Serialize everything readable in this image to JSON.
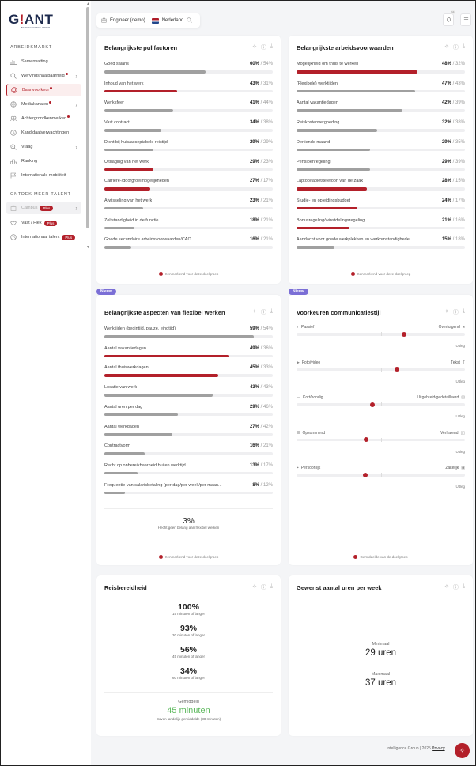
{
  "sidebar": {
    "logo": {
      "main_a": "G",
      "main_bang": "!",
      "main_b": "ANT",
      "sub": "BY INTELLIGENCE GROUP"
    },
    "section_arbeidsmarkt": "ARBEIDSMARKT",
    "items": [
      {
        "label": "Samenvatting",
        "icon": "bar-chart-icon"
      },
      {
        "label": "Wervingshaalbaarheid",
        "icon": "search-icon",
        "dot": true,
        "chevron": true
      },
      {
        "label": "Baanvoorkeur",
        "icon": "fingerprint-icon",
        "dot": true,
        "active": true
      },
      {
        "label": "Mediakanalen",
        "icon": "globe-icon",
        "dot": true,
        "chevron": true
      },
      {
        "label": "Achtergrondkenmerken",
        "icon": "users-icon",
        "dot": true
      },
      {
        "label": "Kandidaatverwachtingen",
        "icon": "clock-icon"
      },
      {
        "label": "Vraag",
        "icon": "zoom-icon",
        "chevron": true
      },
      {
        "label": "Ranking",
        "icon": "podium-icon"
      },
      {
        "label": "Internationale mobiliteit",
        "icon": "flag-icon"
      }
    ],
    "section_ontdek": "ONTDEK MEER TALENT",
    "talent_items": [
      {
        "label": "Campus",
        "badge": "Plus",
        "chevron": true,
        "disabled": true
      },
      {
        "label": "Vast / Flex",
        "badge": "Plus"
      },
      {
        "label": "Internationaal talent",
        "badge": "Plus"
      }
    ]
  },
  "topbar": {
    "profession": "Engineer (demo)",
    "country": "Nederland",
    "notification_count": "11"
  },
  "cards": {
    "pullfactoren": {
      "title": "Belangrijkste pullfactoren",
      "legend": "Kenmerkend voor deze doelgroep",
      "rows": [
        {
          "label": "Goed salaris",
          "value": "60%",
          "benchmark": "/ 54%",
          "pct": 60,
          "highlight": false
        },
        {
          "label": "Inhoud van het werk",
          "value": "43%",
          "benchmark": "/ 31%",
          "pct": 43,
          "highlight": true
        },
        {
          "label": "Werksfeer",
          "value": "41%",
          "benchmark": "/ 44%",
          "pct": 41,
          "highlight": false
        },
        {
          "label": "Vast contract",
          "value": "34%",
          "benchmark": "/ 38%",
          "pct": 34,
          "highlight": false
        },
        {
          "label": "Dicht bij huis/acceptabele reistijd",
          "value": "29%",
          "benchmark": "/ 29%",
          "pct": 29,
          "highlight": false
        },
        {
          "label": "Uitdaging van het werk",
          "value": "29%",
          "benchmark": "/ 23%",
          "pct": 29,
          "highlight": true
        },
        {
          "label": "Carrière-/doorgroeimogelijkheden",
          "value": "27%",
          "benchmark": "/ 17%",
          "pct": 27,
          "highlight": true
        },
        {
          "label": "Afwisseling van het werk",
          "value": "23%",
          "benchmark": "/ 21%",
          "pct": 23,
          "highlight": false
        },
        {
          "label": "Zelfstandigheid in de functie",
          "value": "18%",
          "benchmark": "/ 21%",
          "pct": 18,
          "highlight": false
        },
        {
          "label": "Goede secundaire arbeidsvoorwaarden/CAO",
          "value": "16%",
          "benchmark": "/ 21%",
          "pct": 16,
          "highlight": false
        }
      ]
    },
    "arbeidsvoorwaarden": {
      "title": "Belangrijkste arbeidsvoorwaarden",
      "legend": "Kenmerkend voor deze doelgroep",
      "rows": [
        {
          "label": "Mogelijkheid om thuis te werken",
          "value": "48%",
          "benchmark": "/ 32%",
          "pct": 72,
          "highlight": true
        },
        {
          "label": "(Flexibele) werktijden",
          "value": "47%",
          "benchmark": "/ 43%",
          "pct": 70.5,
          "highlight": false
        },
        {
          "label": "Aantal vakantiedagen",
          "value": "42%",
          "benchmark": "/ 39%",
          "pct": 63,
          "highlight": false
        },
        {
          "label": "Reiskostenvergoeding",
          "value": "32%",
          "benchmark": "/ 38%",
          "pct": 48,
          "highlight": false
        },
        {
          "label": "Dertiende maand",
          "value": "29%",
          "benchmark": "/ 35%",
          "pct": 43.5,
          "highlight": false
        },
        {
          "label": "Pensioenregeling",
          "value": "29%",
          "benchmark": "/ 39%",
          "pct": 43.5,
          "highlight": false
        },
        {
          "label": "Laptop/tablet/telefoon van de zaak",
          "value": "28%",
          "benchmark": "/ 15%",
          "pct": 42,
          "highlight": true
        },
        {
          "label": "Studie- en opleidingsbudget",
          "value": "24%",
          "benchmark": "/ 17%",
          "pct": 36,
          "highlight": true
        },
        {
          "label": "Bonusregeling/winstdelingsregeling",
          "value": "21%",
          "benchmark": "/ 16%",
          "pct": 31.5,
          "highlight": true
        },
        {
          "label": "Aandacht voor goede werkplekken en werkomstandighede...",
          "value": "15%",
          "benchmark": "/ 18%",
          "pct": 22.5,
          "highlight": false
        }
      ]
    },
    "flexibel": {
      "badge": "Nieuw",
      "title": "Belangrijkste aspecten van flexibel werken",
      "legend": "Kenmerkend voor deze doelgroep",
      "summary_value": "3%",
      "summary_label": "Hecht geen belang aan flexibel werken",
      "rows": [
        {
          "label": "Werktijden (begintijd, pauze, eindtijd)",
          "value": "59%",
          "benchmark": "/ 54%",
          "pct": 88.5,
          "highlight": false
        },
        {
          "label": "Aantal vakantiedagen",
          "value": "49%",
          "benchmark": "/ 36%",
          "pct": 73.5,
          "highlight": true
        },
        {
          "label": "Aantal thuiswerkdagen",
          "value": "45%",
          "benchmark": "/ 33%",
          "pct": 67.5,
          "highlight": true
        },
        {
          "label": "Locatie van werk",
          "value": "43%",
          "benchmark": "/ 43%",
          "pct": 64.5,
          "highlight": false
        },
        {
          "label": "Aantal uren per dag",
          "value": "29%",
          "benchmark": "/ 46%",
          "pct": 43.5,
          "highlight": false
        },
        {
          "label": "Aantal werkdagen",
          "value": "27%",
          "benchmark": "/ 42%",
          "pct": 40.5,
          "highlight": false
        },
        {
          "label": "Contractvorm",
          "value": "16%",
          "benchmark": "/ 21%",
          "pct": 24,
          "highlight": false
        },
        {
          "label": "Recht op onbereikbaarheid buiten werktijd",
          "value": "13%",
          "benchmark": "/ 17%",
          "pct": 19.5,
          "highlight": false
        },
        {
          "label": "Frequentie van salarisbetaling (per dag/per week/per maan...",
          "value": "8%",
          "benchmark": "/ 12%",
          "pct": 12,
          "highlight": false
        }
      ]
    },
    "communicatie": {
      "badge": "Nieuw",
      "title": "Voorkeuren communicatiestijl",
      "legend": "Gemiddelde van de doelgroep",
      "uitleg": "Uitleg",
      "rows": [
        {
          "left": "Passief",
          "right": "Overtuigend",
          "left_icon": "speaker-low-icon",
          "right_icon": "speaker-loud-icon",
          "pos": 64
        },
        {
          "left": "Foto/video",
          "right": "Tekst",
          "left_icon": "video-icon",
          "right_icon": "text-icon",
          "pos": 59.5
        },
        {
          "left": "Kort/bondig",
          "right": "Uitgebreid/gedetailleerd",
          "left_icon": "dash-icon",
          "right_icon": "document-icon",
          "pos": 45
        },
        {
          "left": "Opsommend",
          "right": "Verhalend",
          "left_icon": "list-icon",
          "right_icon": "book-icon",
          "pos": 41.5
        },
        {
          "left": "Persoonlijk",
          "right": "Zakelijk",
          "left_icon": "person-focus-icon",
          "right_icon": "briefcase-icon",
          "pos": 41
        }
      ]
    },
    "reisbereidheid": {
      "title": "Reisbereidheid",
      "rows": [
        {
          "value": "100%",
          "label": "15 minuten of langer"
        },
        {
          "value": "93%",
          "label": "30 minuten of langer"
        },
        {
          "value": "56%",
          "label": "45 minuten of langer"
        },
        {
          "value": "34%",
          "label": "60 minuten of langer"
        }
      ],
      "avg_label": "Gemiddeld",
      "avg_value": "45 minuten",
      "avg_note": "Boven landelijk gemiddelde (38 minuten)",
      "avg_color": "#5cb85c"
    },
    "uren": {
      "title": "Gewenst aantal uren per week",
      "min_label": "Minimaal",
      "min_value": "29 uren",
      "max_label": "Maximaal",
      "max_value": "37 uren"
    }
  },
  "footer": {
    "text": "Intelligence Group | 2025",
    "privacy": "Privacy"
  },
  "colors": {
    "accent": "#b3202a",
    "bar_grey": "#a0a0a0",
    "track": "#efeff1",
    "new_badge": "#7b6fd6",
    "avg_green": "#5cb85c"
  }
}
